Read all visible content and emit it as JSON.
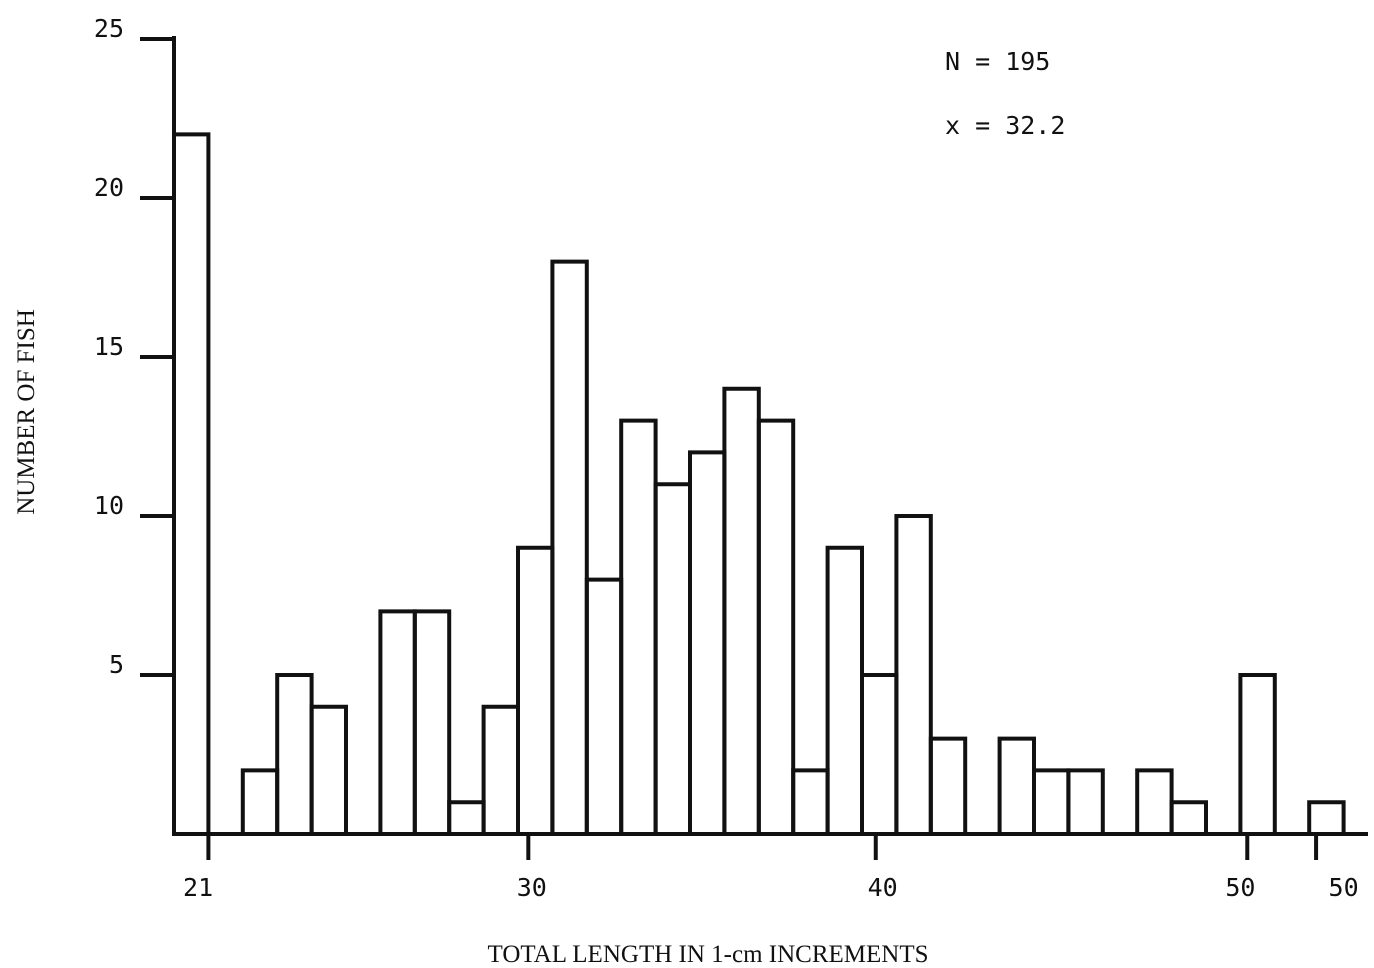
{
  "chart_data": {
    "type": "bar",
    "xlabel": "TOTAL LENGTH IN 1-cm INCREMENTS",
    "ylabel": "NUMBER OF FISH",
    "ylim": [
      0,
      25
    ],
    "y_ticks": [
      "5",
      "10",
      "15",
      "20",
      "25"
    ],
    "x_tick_labels": [
      "21",
      "30",
      "40",
      "50",
      "50"
    ],
    "annotations": [
      "N = 195",
      "x = 32.2"
    ],
    "bins": [
      {
        "start": 20,
        "end": 21,
        "value": 22
      },
      {
        "start": 21,
        "end": 22,
        "value": 0
      },
      {
        "start": 22,
        "end": 23,
        "value": 2
      },
      {
        "start": 23,
        "end": 24,
        "value": 5
      },
      {
        "start": 24,
        "end": 25,
        "value": 4
      },
      {
        "start": 25,
        "end": 26,
        "value": 0
      },
      {
        "start": 26,
        "end": 27,
        "value": 7
      },
      {
        "start": 27,
        "end": 28,
        "value": 7
      },
      {
        "start": 28,
        "end": 29,
        "value": 1
      },
      {
        "start": 29,
        "end": 30,
        "value": 4
      },
      {
        "start": 30,
        "end": 31,
        "value": 9
      },
      {
        "start": 31,
        "end": 32,
        "value": 18
      },
      {
        "start": 32,
        "end": 33,
        "value": 8
      },
      {
        "start": 33,
        "end": 34,
        "value": 13
      },
      {
        "start": 34,
        "end": 35,
        "value": 11
      },
      {
        "start": 35,
        "end": 36,
        "value": 12
      },
      {
        "start": 36,
        "end": 37,
        "value": 14
      },
      {
        "start": 37,
        "end": 38,
        "value": 13
      },
      {
        "start": 38,
        "end": 39,
        "value": 2
      },
      {
        "start": 39,
        "end": 40,
        "value": 9
      },
      {
        "start": 40,
        "end": 41,
        "value": 5
      },
      {
        "start": 41,
        "end": 42,
        "value": 10
      },
      {
        "start": 42,
        "end": 43,
        "value": 3
      },
      {
        "start": 43,
        "end": 44,
        "value": 0
      },
      {
        "start": 44,
        "end": 45,
        "value": 3
      },
      {
        "start": 45,
        "end": 46,
        "value": 2
      },
      {
        "start": 46,
        "end": 47,
        "value": 2
      },
      {
        "start": 47,
        "end": 48,
        "value": 0
      },
      {
        "start": 48,
        "end": 49,
        "value": 2
      },
      {
        "start": 49,
        "end": 50,
        "value": 1
      },
      {
        "start": 50,
        "end": 51,
        "value": 0
      },
      {
        "start": 51,
        "end": 52,
        "value": 5
      },
      {
        "start": 52,
        "end": 53,
        "value": 0
      },
      {
        "start": 53,
        "end": 54,
        "value": 1
      }
    ]
  }
}
